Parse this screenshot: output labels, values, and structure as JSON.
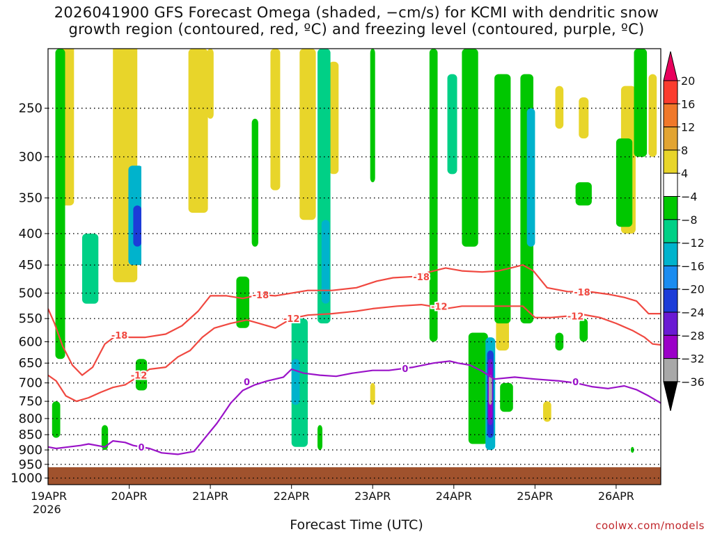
{
  "title": {
    "line1": "2026041900 GFS Forecast Omega (shaded, −cm/s) for KCMI with dendritic snow",
    "line2": "growth region (contoured, red, ºC) and freezing level (contoured, purple, ºC)"
  },
  "x_axis_label": "Forecast Time (UTC)",
  "credit": "coolwx.com/models",
  "chart_data": {
    "type": "heatmap",
    "x_axis": {
      "unit": "days since 19APR 00Z",
      "range": [
        0,
        7.55
      ],
      "ticks": [
        {
          "value": 0,
          "label": "19APR",
          "sublabel": "2026"
        },
        {
          "value": 1,
          "label": "20APR"
        },
        {
          "value": 2,
          "label": "21APR"
        },
        {
          "value": 3,
          "label": "22APR"
        },
        {
          "value": 4,
          "label": "23APR"
        },
        {
          "value": 5,
          "label": "24APR"
        },
        {
          "value": 6,
          "label": "25APR"
        },
        {
          "value": 7,
          "label": "26APR"
        }
      ]
    },
    "y_axis": {
      "unit": "hPa",
      "scale": "log",
      "inverted": true,
      "range": [
        200,
        1025
      ],
      "ticks": [
        250,
        300,
        350,
        400,
        450,
        500,
        550,
        600,
        650,
        700,
        750,
        800,
        850,
        900,
        950,
        1000
      ],
      "grid": "dotted"
    },
    "colorbar": {
      "labels": [
        "20",
        "16",
        "12",
        "8",
        "4",
        "−4",
        "−8",
        "−12",
        "−16",
        "−20",
        "−24",
        "−28",
        "−32",
        "−36"
      ],
      "bounds": [
        20,
        16,
        12,
        8,
        4,
        -4,
        -8,
        -12,
        -16,
        -20,
        -24,
        -28,
        -32,
        -36
      ],
      "colors": [
        "#e8005c",
        "#fb3c2e",
        "#f0782a",
        "#e2a432",
        "#e8d52a",
        "#ffffff",
        "#00c700",
        "#00d086",
        "#00b3cc",
        "#1a8cf0",
        "#1c3cd8",
        "#6a1ad3",
        "#9b00c8",
        "#a8a8a8",
        "#000000"
      ]
    },
    "ground_color": "#a0522d",
    "contours": [
      {
        "name": "-18",
        "color": "#f04840",
        "labels": [
          {
            "x": 0.88,
            "p": 585,
            "text": "-18"
          },
          {
            "x": 2.62,
            "p": 503,
            "text": "-18"
          },
          {
            "x": 4.6,
            "p": 470,
            "text": "-18"
          },
          {
            "x": 6.58,
            "p": 498,
            "text": "-18"
          }
        ],
        "points": [
          [
            0.0,
            530
          ],
          [
            0.08,
            560
          ],
          [
            0.18,
            610
          ],
          [
            0.3,
            655
          ],
          [
            0.42,
            680
          ],
          [
            0.55,
            660
          ],
          [
            0.7,
            605
          ],
          [
            0.85,
            585
          ],
          [
            1.0,
            590
          ],
          [
            1.2,
            590
          ],
          [
            1.45,
            583
          ],
          [
            1.65,
            565
          ],
          [
            1.85,
            535
          ],
          [
            2.0,
            505
          ],
          [
            2.2,
            505
          ],
          [
            2.4,
            510
          ],
          [
            2.6,
            503
          ],
          [
            2.8,
            505
          ],
          [
            3.0,
            500
          ],
          [
            3.2,
            495
          ],
          [
            3.5,
            495
          ],
          [
            3.8,
            490
          ],
          [
            4.05,
            478
          ],
          [
            4.25,
            472
          ],
          [
            4.5,
            470
          ],
          [
            4.7,
            462
          ],
          [
            4.9,
            455
          ],
          [
            5.1,
            460
          ],
          [
            5.35,
            462
          ],
          [
            5.55,
            460
          ],
          [
            5.7,
            455
          ],
          [
            5.85,
            450
          ],
          [
            5.98,
            460
          ],
          [
            6.15,
            490
          ],
          [
            6.4,
            497
          ],
          [
            6.7,
            498
          ],
          [
            6.9,
            502
          ],
          [
            7.1,
            508
          ],
          [
            7.25,
            515
          ],
          [
            7.4,
            540
          ],
          [
            7.55,
            540
          ]
        ]
      },
      {
        "name": "-12",
        "color": "#f04840",
        "labels": [
          {
            "x": 1.12,
            "p": 680,
            "text": "-12"
          },
          {
            "x": 3.0,
            "p": 550,
            "text": "-12"
          },
          {
            "x": 4.82,
            "p": 525,
            "text": "-12"
          },
          {
            "x": 6.5,
            "p": 545,
            "text": "-12"
          }
        ],
        "points": [
          [
            0.0,
            680
          ],
          [
            0.1,
            695
          ],
          [
            0.22,
            735
          ],
          [
            0.35,
            750
          ],
          [
            0.5,
            740
          ],
          [
            0.65,
            725
          ],
          [
            0.8,
            712
          ],
          [
            0.95,
            705
          ],
          [
            1.1,
            685
          ],
          [
            1.25,
            665
          ],
          [
            1.45,
            660
          ],
          [
            1.6,
            635
          ],
          [
            1.75,
            620
          ],
          [
            1.9,
            590
          ],
          [
            2.05,
            570
          ],
          [
            2.25,
            560
          ],
          [
            2.45,
            553
          ],
          [
            2.6,
            560
          ],
          [
            2.8,
            570
          ],
          [
            3.0,
            550
          ],
          [
            3.2,
            543
          ],
          [
            3.5,
            540
          ],
          [
            3.8,
            535
          ],
          [
            4.0,
            530
          ],
          [
            4.3,
            525
          ],
          [
            4.6,
            522
          ],
          [
            4.9,
            530
          ],
          [
            5.1,
            525
          ],
          [
            5.3,
            525
          ],
          [
            5.6,
            525
          ],
          [
            5.85,
            525
          ],
          [
            6.0,
            548
          ],
          [
            6.2,
            548
          ],
          [
            6.4,
            545
          ],
          [
            6.6,
            542
          ],
          [
            6.8,
            548
          ],
          [
            7.0,
            560
          ],
          [
            7.2,
            575
          ],
          [
            7.35,
            590
          ],
          [
            7.45,
            605
          ],
          [
            7.55,
            607
          ]
        ]
      },
      {
        "name": "0",
        "color": "#9a12c8",
        "labels": [
          {
            "x": 1.15,
            "p": 890,
            "text": "0"
          },
          {
            "x": 2.45,
            "p": 697,
            "text": "0"
          },
          {
            "x": 4.4,
            "p": 663,
            "text": "0"
          },
          {
            "x": 6.5,
            "p": 697,
            "text": "0"
          }
        ],
        "points": [
          [
            0.0,
            890
          ],
          [
            0.1,
            895
          ],
          [
            0.25,
            890
          ],
          [
            0.4,
            885
          ],
          [
            0.5,
            880
          ],
          [
            0.7,
            890
          ],
          [
            0.8,
            870
          ],
          [
            0.95,
            875
          ],
          [
            1.05,
            885
          ],
          [
            1.25,
            895
          ],
          [
            1.4,
            910
          ],
          [
            1.6,
            915
          ],
          [
            1.8,
            905
          ],
          [
            1.95,
            855
          ],
          [
            2.08,
            815
          ],
          [
            2.15,
            790
          ],
          [
            2.25,
            755
          ],
          [
            2.4,
            720
          ],
          [
            2.55,
            705
          ],
          [
            2.7,
            695
          ],
          [
            2.9,
            685
          ],
          [
            3.0,
            665
          ],
          [
            3.15,
            675
          ],
          [
            3.35,
            680
          ],
          [
            3.55,
            683
          ],
          [
            3.75,
            675
          ],
          [
            4.0,
            668
          ],
          [
            4.2,
            668
          ],
          [
            4.5,
            660
          ],
          [
            4.75,
            650
          ],
          [
            4.95,
            645
          ],
          [
            5.05,
            650
          ],
          [
            5.2,
            655
          ],
          [
            5.35,
            670
          ],
          [
            5.5,
            690
          ],
          [
            5.75,
            685
          ],
          [
            6.0,
            690
          ],
          [
            6.3,
            695
          ],
          [
            6.5,
            700
          ],
          [
            6.7,
            710
          ],
          [
            6.9,
            715
          ],
          [
            7.1,
            708
          ],
          [
            7.25,
            718
          ],
          [
            7.4,
            735
          ],
          [
            7.55,
            755
          ]
        ]
      }
    ]
  }
}
